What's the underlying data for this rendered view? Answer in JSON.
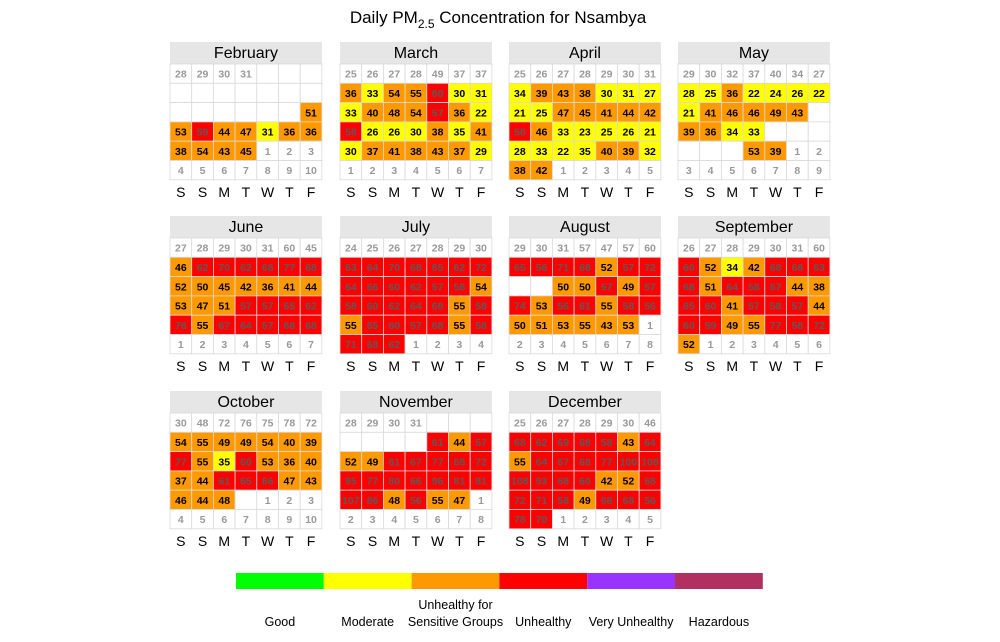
{
  "chart_data": {
    "type": "heatmap",
    "title": "Daily PM",
    "title_sub": "2.5",
    "title_suffix": " Concentration for Nsambya",
    "weekday_labels": [
      "S",
      "S",
      "M",
      "T",
      "W",
      "T",
      "F"
    ],
    "colors": {
      "good": "#00ff00",
      "moderate": "#ffff00",
      "usg": "#ff9900",
      "unhealthy": "#ff0000",
      "very_unhealthy": "#9933ff",
      "hazardous": "#b03060",
      "header_bg": "#e6e6e6",
      "outside_text": "#999999"
    },
    "legend": [
      {
        "key": "good",
        "label": [
          "Good"
        ]
      },
      {
        "key": "moderate",
        "label": [
          "Moderate"
        ]
      },
      {
        "key": "usg",
        "label": [
          "Unhealthy for",
          "Sensitive Groups"
        ]
      },
      {
        "key": "unhealthy",
        "label": [
          "Unhealthy"
        ]
      },
      {
        "key": "very_unhealthy",
        "label": [
          "Very Unhealthy"
        ]
      },
      {
        "key": "hazardous",
        "label": [
          "Hazardous"
        ]
      }
    ],
    "months": [
      {
        "name": "February",
        "weeks": [
          [
            "28",
            "29",
            "30",
            "31",
            "",
            "",
            ""
          ],
          [
            "",
            "",
            "",
            "",
            "",
            "",
            ""
          ],
          [
            "",
            "",
            "",
            "",
            "",
            "",
            "51"
          ],
          [
            "53",
            "59",
            "44",
            "47",
            "31",
            "36",
            "36"
          ],
          [
            "38",
            "54",
            "43",
            "45",
            "1",
            "2",
            "3"
          ],
          [
            "4",
            "5",
            "6",
            "7",
            "8",
            "9",
            "10"
          ]
        ]
      },
      {
        "name": "March",
        "weeks": [
          [
            "25",
            "26",
            "27",
            "28",
            "49",
            "37",
            "37"
          ],
          [
            "36",
            "33",
            "54",
            "55",
            "60",
            "30",
            "31"
          ],
          [
            "33",
            "40",
            "48",
            "54",
            "57",
            "36",
            "22"
          ],
          [
            "58",
            "26",
            "26",
            "30",
            "38",
            "35",
            "41"
          ],
          [
            "30",
            "37",
            "41",
            "38",
            "43",
            "37",
            "29"
          ],
          [
            "1",
            "2",
            "3",
            "4",
            "5",
            "6",
            "7"
          ]
        ]
      },
      {
        "name": "April",
        "weeks": [
          [
            "25",
            "26",
            "27",
            "28",
            "29",
            "30",
            "31"
          ],
          [
            "34",
            "39",
            "43",
            "38",
            "30",
            "31",
            "27"
          ],
          [
            "21",
            "25",
            "47",
            "45",
            "41",
            "44",
            "42"
          ],
          [
            "58",
            "46",
            "33",
            "23",
            "25",
            "26",
            "21"
          ],
          [
            "28",
            "33",
            "22",
            "35",
            "40",
            "39",
            "32"
          ],
          [
            "38",
            "42",
            "1",
            "2",
            "3",
            "4",
            "5"
          ]
        ]
      },
      {
        "name": "May",
        "weeks": [
          [
            "29",
            "30",
            "32",
            "37",
            "40",
            "34",
            "27"
          ],
          [
            "28",
            "25",
            "36",
            "22",
            "24",
            "26",
            "22"
          ],
          [
            "21",
            "41",
            "46",
            "46",
            "49",
            "43",
            ""
          ],
          [
            "39",
            "36",
            "34",
            "33",
            "",
            "",
            ""
          ],
          [
            "",
            "",
            "",
            "53",
            "39",
            "1",
            "2"
          ],
          [
            "3",
            "4",
            "5",
            "6",
            "7",
            "8",
            "9"
          ]
        ]
      },
      {
        "name": "June",
        "weeks": [
          [
            "27",
            "28",
            "29",
            "30",
            "31",
            "60",
            "45"
          ],
          [
            "46",
            "62",
            "70",
            "62",
            "68",
            "77",
            "68"
          ],
          [
            "52",
            "50",
            "45",
            "42",
            "36",
            "41",
            "44"
          ],
          [
            "53",
            "47",
            "51",
            "57",
            "57",
            "65",
            "62"
          ],
          [
            "76",
            "55",
            "67",
            "64",
            "57",
            "68",
            "68"
          ],
          [
            "1",
            "2",
            "3",
            "4",
            "5",
            "6",
            "7"
          ]
        ]
      },
      {
        "name": "July",
        "weeks": [
          [
            "24",
            "25",
            "26",
            "27",
            "28",
            "29",
            "30"
          ],
          [
            "63",
            "64",
            "70",
            "68",
            "65",
            "62",
            "72"
          ],
          [
            "64",
            "66",
            "60",
            "62",
            "57",
            "58",
            "54"
          ],
          [
            "58",
            "60",
            "62",
            "64",
            "68",
            "55",
            "58"
          ],
          [
            "55",
            "65",
            "60",
            "57",
            "68",
            "55",
            "58"
          ],
          [
            "71",
            "68",
            "62",
            "1",
            "2",
            "3",
            "4"
          ]
        ]
      },
      {
        "name": "August",
        "weeks": [
          [
            "29",
            "30",
            "31",
            "57",
            "47",
            "57",
            "60"
          ],
          [
            "65",
            "56",
            "71",
            "68",
            "52",
            "57",
            "72"
          ],
          [
            "",
            "",
            "50",
            "50",
            "57",
            "49",
            "57"
          ],
          [
            "74",
            "53",
            "56",
            "61",
            "55",
            "58",
            "56"
          ],
          [
            "50",
            "51",
            "53",
            "55",
            "43",
            "53",
            "1"
          ],
          [
            "2",
            "3",
            "4",
            "5",
            "6",
            "7",
            "8"
          ]
        ]
      },
      {
        "name": "September",
        "weeks": [
          [
            "26",
            "27",
            "28",
            "29",
            "30",
            "31",
            "60"
          ],
          [
            "60",
            "52",
            "34",
            "42",
            "68",
            "68",
            "63"
          ],
          [
            "68",
            "51",
            "64",
            "58",
            "67",
            "44",
            "38"
          ],
          [
            "65",
            "60",
            "41",
            "57",
            "58",
            "57",
            "44"
          ],
          [
            "60",
            "59",
            "49",
            "55",
            "77",
            "58",
            "72"
          ],
          [
            "52",
            "1",
            "2",
            "3",
            "4",
            "5",
            "6"
          ]
        ]
      },
      {
        "name": "October",
        "weeks": [
          [
            "30",
            "48",
            "72",
            "76",
            "75",
            "78",
            "72"
          ],
          [
            "54",
            "55",
            "49",
            "49",
            "54",
            "40",
            "39"
          ],
          [
            "77",
            "55",
            "35",
            "60",
            "53",
            "36",
            "40"
          ],
          [
            "37",
            "44",
            "61",
            "65",
            "66",
            "47",
            "43"
          ],
          [
            "46",
            "44",
            "48",
            "",
            "1",
            "2",
            "3"
          ],
          [
            "4",
            "5",
            "6",
            "7",
            "8",
            "9",
            "10"
          ]
        ]
      },
      {
        "name": "November",
        "weeks": [
          [
            "28",
            "29",
            "30",
            "31",
            "",
            "",
            ""
          ],
          [
            "",
            "",
            "",
            "",
            "61",
            "44",
            "57"
          ],
          [
            "52",
            "49",
            "61",
            "67",
            "77",
            "68",
            "72"
          ],
          [
            "95",
            "77",
            "80",
            "66",
            "96",
            "81",
            "81"
          ],
          [
            "107",
            "86",
            "48",
            "56",
            "55",
            "47",
            "1"
          ],
          [
            "2",
            "3",
            "4",
            "5",
            "6",
            "7",
            "8"
          ]
        ]
      },
      {
        "name": "December",
        "weeks": [
          [
            "25",
            "26",
            "27",
            "28",
            "29",
            "30",
            "46"
          ],
          [
            "68",
            "62",
            "69",
            "68",
            "58",
            "43",
            "64"
          ],
          [
            "55",
            "64",
            "67",
            "68",
            "77",
            "100",
            "108"
          ],
          [
            "108",
            "93",
            "68",
            "60",
            "42",
            "52",
            "68"
          ],
          [
            "72",
            "71",
            "58",
            "49",
            "68",
            "68",
            "56"
          ],
          [
            "78",
            "70",
            "1",
            "2",
            "3",
            "4",
            "5"
          ]
        ]
      }
    ]
  }
}
